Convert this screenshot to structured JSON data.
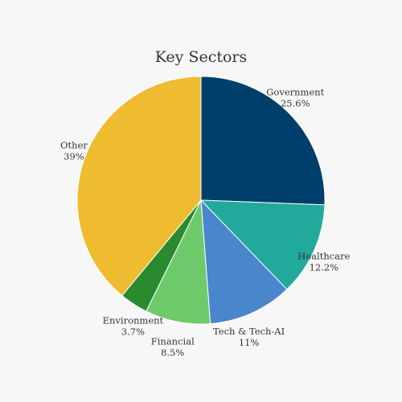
{
  "chart_data": {
    "type": "pie",
    "title": "Key Sectors",
    "start_angle_deg": 0,
    "direction": "clockwise",
    "slices": [
      {
        "label": "Government",
        "value": 25.6,
        "value_label": "25.6%",
        "color": "#003f6b"
      },
      {
        "label": "Healthcare",
        "value": 12.2,
        "value_label": "12.2%",
        "color": "#21a99c"
      },
      {
        "label": "Tech & Tech-AI",
        "value": 11,
        "value_label": "11%",
        "color": "#4a86cc"
      },
      {
        "label": "Financial",
        "value": 8.5,
        "value_label": "8.5%",
        "color": "#6ecb6b"
      },
      {
        "label": "Environment",
        "value": 3.7,
        "value_label": "3.7%",
        "color": "#2b8a30"
      },
      {
        "label": "Other",
        "value": 39,
        "value_label": "39%",
        "color": "#efbb30"
      }
    ],
    "legend": "none",
    "labels": "outside"
  }
}
